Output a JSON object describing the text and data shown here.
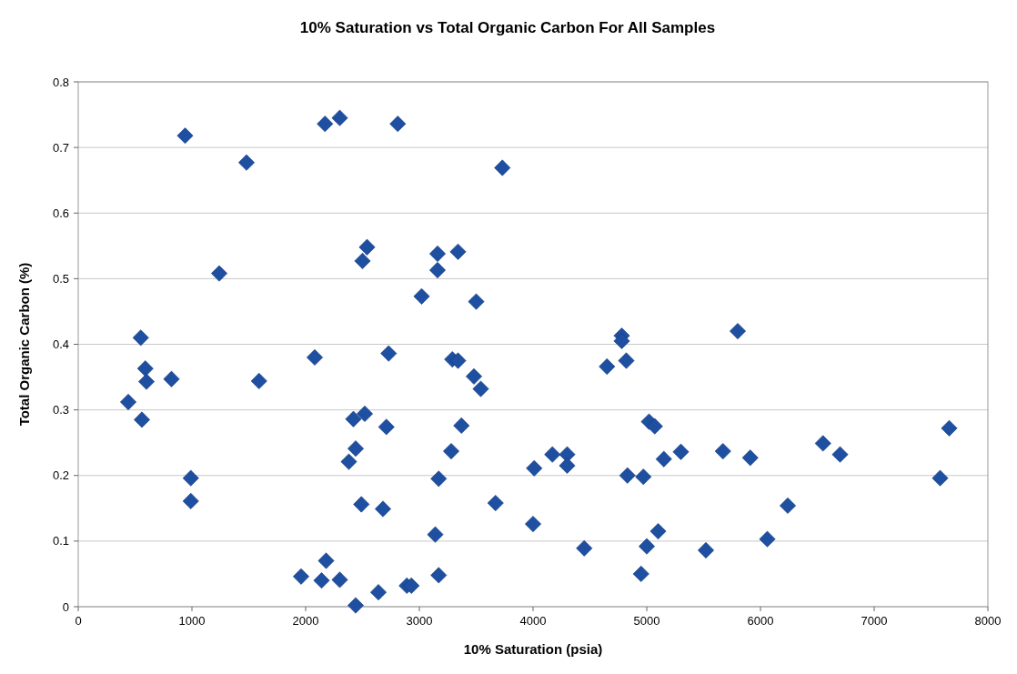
{
  "chart_data": {
    "type": "scatter",
    "title": "10% Saturation vs Total Organic Carbon For All Samples",
    "xlabel": "10% Saturation (psia)",
    "ylabel": "Total Organic Carbon (%)",
    "xlim": [
      0,
      8000
    ],
    "xticks": [
      0,
      1000,
      2000,
      3000,
      4000,
      5000,
      6000,
      7000,
      8000
    ],
    "ylim": [
      0,
      0.8
    ],
    "yticks": [
      0,
      0.1,
      0.2,
      0.3,
      0.4,
      0.5,
      0.6,
      0.7,
      0.8
    ],
    "grid": "y",
    "marker": "diamond",
    "series": [
      {
        "color": "#1f4fa0",
        "x": [
          940,
          2170,
          2300,
          2810,
          1480,
          3730,
          1240,
          2540,
          2500,
          3160,
          3340,
          3160,
          3020,
          3500,
          550,
          590,
          600,
          820,
          440,
          560,
          990,
          990,
          1590,
          2080,
          2730,
          2420,
          2520,
          2440,
          2380,
          2710,
          2490,
          2680,
          1960,
          2140,
          2180,
          2300,
          2440,
          2640,
          2890,
          2930,
          3170,
          3140,
          3170,
          3280,
          3370,
          3290,
          3340,
          3480,
          3540,
          3670,
          4000,
          4010,
          4170,
          4300,
          4300,
          4450,
          4650,
          4780,
          4780,
          4820,
          4830,
          4970,
          4950,
          5000,
          5020,
          5070,
          5100,
          5150,
          5300,
          5520,
          5670,
          5800,
          5910,
          6060,
          6240,
          6550,
          6700,
          7580,
          7660
        ],
        "values": [
          0.718,
          0.736,
          0.745,
          0.736,
          0.677,
          0.669,
          0.508,
          0.548,
          0.527,
          0.538,
          0.541,
          0.513,
          0.473,
          0.465,
          0.41,
          0.363,
          0.343,
          0.347,
          0.312,
          0.285,
          0.196,
          0.161,
          0.344,
          0.38,
          0.386,
          0.286,
          0.294,
          0.241,
          0.221,
          0.274,
          0.156,
          0.149,
          0.046,
          0.04,
          0.07,
          0.041,
          0.002,
          0.022,
          0.032,
          0.032,
          0.048,
          0.11,
          0.195,
          0.237,
          0.276,
          0.377,
          0.375,
          0.351,
          0.332,
          0.158,
          0.126,
          0.211,
          0.232,
          0.232,
          0.215,
          0.089,
          0.366,
          0.413,
          0.405,
          0.375,
          0.2,
          0.198,
          0.05,
          0.092,
          0.282,
          0.275,
          0.115,
          0.225,
          0.236,
          0.086,
          0.237,
          0.42,
          0.227,
          0.103,
          0.154,
          0.249,
          0.232,
          0.196,
          0.272
        ]
      }
    ]
  }
}
